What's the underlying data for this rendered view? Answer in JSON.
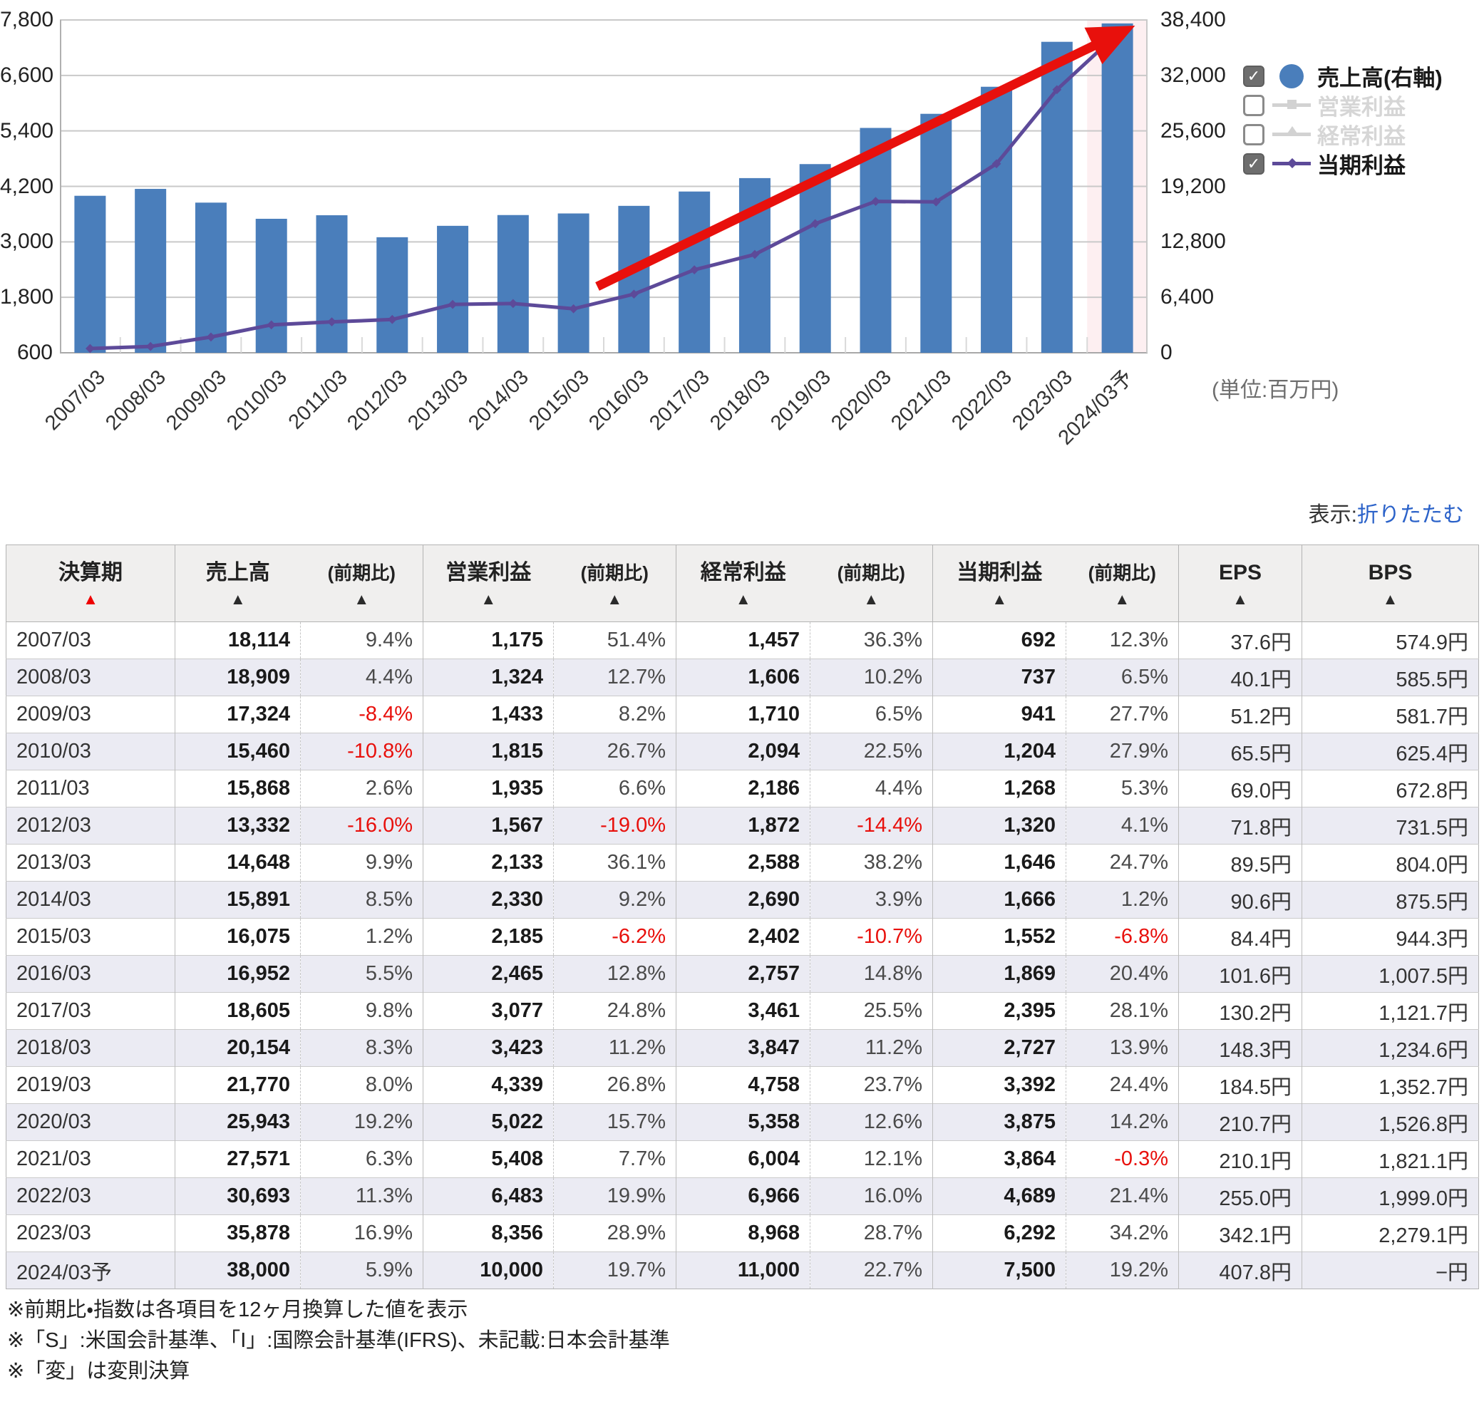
{
  "chart": {
    "left_axis_ticks": [
      "7,800",
      "6,600",
      "5,400",
      "4,200",
      "3,000",
      "1,800",
      "600"
    ],
    "right_axis_ticks": [
      "38,400",
      "32,000",
      "25,600",
      "19,200",
      "12,800",
      "6,400",
      "0"
    ],
    "unit_note": "(単位:百万円)",
    "legend": [
      {
        "label": "売上高(右軸)",
        "checked": true,
        "marker": "circle",
        "color": "#4a7ebb",
        "text_color": "#1a1a1a"
      },
      {
        "label": "営業利益",
        "checked": false,
        "marker": "square-line",
        "color": "#d2d2d2",
        "text_color": "#d6d6d6"
      },
      {
        "label": "経常利益",
        "checked": false,
        "marker": "triangle-line",
        "color": "#d2d2d2",
        "text_color": "#d6d6d6"
      },
      {
        "label": "当期利益",
        "checked": true,
        "marker": "diamond-line",
        "color": "#5d4a99",
        "text_color": "#1a1a1a"
      }
    ]
  },
  "chart_data": {
    "type": "bar+line combo",
    "categories": [
      "2007/03",
      "2008/03",
      "2009/03",
      "2010/03",
      "2011/03",
      "2012/03",
      "2013/03",
      "2014/03",
      "2015/03",
      "2016/03",
      "2017/03",
      "2018/03",
      "2019/03",
      "2020/03",
      "2021/03",
      "2022/03",
      "2023/03",
      "2024/03予"
    ],
    "series": [
      {
        "name": "売上高(右軸)",
        "type": "bar",
        "axis": "right",
        "visible": true,
        "color": "#4a7ebb",
        "values": [
          18114,
          18909,
          17324,
          15460,
          15868,
          13332,
          14648,
          15891,
          16075,
          16952,
          18605,
          20154,
          21770,
          25943,
          27571,
          30693,
          35878,
          38000
        ]
      },
      {
        "name": "営業利益",
        "type": "line",
        "axis": "left",
        "visible": false,
        "color": "#d2d2d2",
        "values": [
          1175,
          1324,
          1433,
          1815,
          1935,
          1567,
          2133,
          2330,
          2185,
          2465,
          3077,
          3423,
          4339,
          5022,
          5408,
          6483,
          8356,
          10000
        ]
      },
      {
        "name": "経常利益",
        "type": "line",
        "axis": "left",
        "visible": false,
        "color": "#d2d2d2",
        "values": [
          1457,
          1606,
          1710,
          2094,
          2186,
          1872,
          2588,
          2690,
          2402,
          2757,
          3461,
          3847,
          4758,
          5358,
          6004,
          6966,
          8968,
          11000
        ]
      },
      {
        "name": "当期利益",
        "type": "line",
        "axis": "left",
        "visible": true,
        "color": "#5d4a99",
        "values": [
          692,
          737,
          941,
          1204,
          1268,
          1320,
          1646,
          1666,
          1552,
          1869,
          2395,
          2727,
          3392,
          3875,
          3864,
          4689,
          6292,
          7500
        ]
      }
    ],
    "left_axis": {
      "min": 600,
      "max": 7800,
      "step": 1200
    },
    "right_axis": {
      "min": 0,
      "max": 38400,
      "step": 6400
    },
    "highlight_category": "2024/03予",
    "highlight_color": "#fdeff1",
    "annotation": {
      "type": "trend-arrow",
      "color": "#e8100c"
    },
    "grid": true,
    "legend_position": "right"
  },
  "toolbar": {
    "display_label": "表示:",
    "collapse_link": "折りたたむ"
  },
  "table": {
    "columns": [
      "決算期",
      "売上高",
      "(前期比)",
      "営業利益",
      "(前期比)",
      "経常利益",
      "(前期比)",
      "当期利益",
      "(前期比)",
      "EPS",
      "BPS"
    ],
    "sort_arrow": "▲",
    "rows": [
      [
        "2007/03",
        "18,114",
        "9.4%",
        "1,175",
        "51.4%",
        "1,457",
        "36.3%",
        "692",
        "12.3%",
        "37.6円",
        "574.9円"
      ],
      [
        "2008/03",
        "18,909",
        "4.4%",
        "1,324",
        "12.7%",
        "1,606",
        "10.2%",
        "737",
        "6.5%",
        "40.1円",
        "585.5円"
      ],
      [
        "2009/03",
        "17,324",
        "-8.4%",
        "1,433",
        "8.2%",
        "1,710",
        "6.5%",
        "941",
        "27.7%",
        "51.2円",
        "581.7円"
      ],
      [
        "2010/03",
        "15,460",
        "-10.8%",
        "1,815",
        "26.7%",
        "2,094",
        "22.5%",
        "1,204",
        "27.9%",
        "65.5円",
        "625.4円"
      ],
      [
        "2011/03",
        "15,868",
        "2.6%",
        "1,935",
        "6.6%",
        "2,186",
        "4.4%",
        "1,268",
        "5.3%",
        "69.0円",
        "672.8円"
      ],
      [
        "2012/03",
        "13,332",
        "-16.0%",
        "1,567",
        "-19.0%",
        "1,872",
        "-14.4%",
        "1,320",
        "4.1%",
        "71.8円",
        "731.5円"
      ],
      [
        "2013/03",
        "14,648",
        "9.9%",
        "2,133",
        "36.1%",
        "2,588",
        "38.2%",
        "1,646",
        "24.7%",
        "89.5円",
        "804.0円"
      ],
      [
        "2014/03",
        "15,891",
        "8.5%",
        "2,330",
        "9.2%",
        "2,690",
        "3.9%",
        "1,666",
        "1.2%",
        "90.6円",
        "875.5円"
      ],
      [
        "2015/03",
        "16,075",
        "1.2%",
        "2,185",
        "-6.2%",
        "2,402",
        "-10.7%",
        "1,552",
        "-6.8%",
        "84.4円",
        "944.3円"
      ],
      [
        "2016/03",
        "16,952",
        "5.5%",
        "2,465",
        "12.8%",
        "2,757",
        "14.8%",
        "1,869",
        "20.4%",
        "101.6円",
        "1,007.5円"
      ],
      [
        "2017/03",
        "18,605",
        "9.8%",
        "3,077",
        "24.8%",
        "3,461",
        "25.5%",
        "2,395",
        "28.1%",
        "130.2円",
        "1,121.7円"
      ],
      [
        "2018/03",
        "20,154",
        "8.3%",
        "3,423",
        "11.2%",
        "3,847",
        "11.2%",
        "2,727",
        "13.9%",
        "148.3円",
        "1,234.6円"
      ],
      [
        "2019/03",
        "21,770",
        "8.0%",
        "4,339",
        "26.8%",
        "4,758",
        "23.7%",
        "3,392",
        "24.4%",
        "184.5円",
        "1,352.7円"
      ],
      [
        "2020/03",
        "25,943",
        "19.2%",
        "5,022",
        "15.7%",
        "5,358",
        "12.6%",
        "3,875",
        "14.2%",
        "210.7円",
        "1,526.8円"
      ],
      [
        "2021/03",
        "27,571",
        "6.3%",
        "5,408",
        "7.7%",
        "6,004",
        "12.1%",
        "3,864",
        "-0.3%",
        "210.1円",
        "1,821.1円"
      ],
      [
        "2022/03",
        "30,693",
        "11.3%",
        "6,483",
        "19.9%",
        "6,966",
        "16.0%",
        "4,689",
        "21.4%",
        "255.0円",
        "1,999.0円"
      ],
      [
        "2023/03",
        "35,878",
        "16.9%",
        "8,356",
        "28.9%",
        "8,968",
        "28.7%",
        "6,292",
        "34.2%",
        "342.1円",
        "2,279.1円"
      ],
      [
        "2024/03予",
        "38,000",
        "5.9%",
        "10,000",
        "19.7%",
        "11,000",
        "22.7%",
        "7,500",
        "19.2%",
        "407.8円",
        "−円"
      ]
    ]
  },
  "footnotes": [
    "※前期比・指数は各項目を12ヶ月換算した値を表示",
    "※「S」:米国会計基準、「I」:国際会計基準(IFRS)、未記載:日本会計基準",
    "※「変」は変則決算"
  ]
}
